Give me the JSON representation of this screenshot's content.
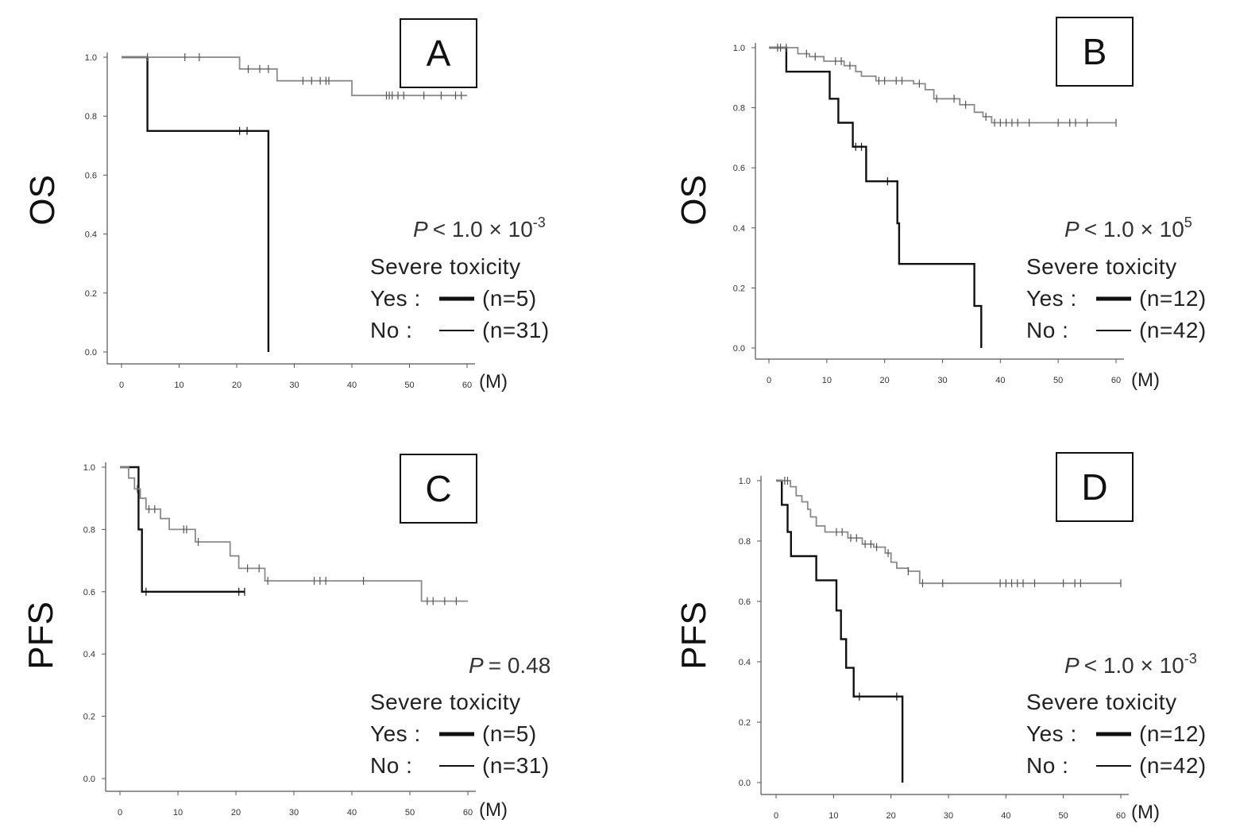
{
  "chart_data": [
    {
      "type": "line",
      "panel": "A",
      "ylabel": "OS",
      "xlabel": "(M)",
      "xlim": [
        0,
        60
      ],
      "ylim": [
        0,
        1
      ],
      "xticks": [
        "0",
        "10",
        "20",
        "30",
        "40",
        "50",
        "60"
      ],
      "yticks": [
        "0.0",
        "0.2",
        "0.4",
        "0.6",
        "0.8",
        "1.0"
      ],
      "p_value": {
        "prefix": "P",
        "text": "< 1.0 × 10",
        "sup": "-3"
      },
      "legend_title": "Severe toxicity",
      "legend": [
        {
          "label": "Yes :",
          "n": "(n=5)",
          "weight": "thick"
        },
        {
          "label": "No  :",
          "n": "(n=31)",
          "weight": "thin"
        }
      ],
      "series": [
        {
          "name": "Yes",
          "weight": "thick",
          "steps": [
            [
              0,
              1.0
            ],
            [
              4.5,
              0.75
            ],
            [
              25.5,
              0.0
            ]
          ],
          "end": 25.5,
          "censors": [
            20.5,
            21.8
          ]
        },
        {
          "name": "No",
          "weight": "thin",
          "steps": [
            [
              0,
              1.0
            ],
            [
              20.5,
              0.96
            ],
            [
              27,
              0.92
            ],
            [
              40,
              0.87
            ]
          ],
          "end": 60,
          "censors": [
            4.5,
            11,
            13.5,
            22,
            24,
            25.5,
            31.5,
            33,
            34.5,
            35.5,
            36,
            46,
            46.5,
            47,
            48,
            49,
            52.5,
            55.5,
            58,
            59
          ]
        }
      ]
    },
    {
      "type": "line",
      "panel": "B",
      "ylabel": "OS",
      "xlabel": "(M)",
      "xlim": [
        0,
        60
      ],
      "ylim": [
        0,
        1
      ],
      "xticks": [
        "0",
        "10",
        "20",
        "30",
        "40",
        "50",
        "60"
      ],
      "yticks": [
        "0.0",
        "0.2",
        "0.4",
        "0.6",
        "0.8",
        "1.0"
      ],
      "p_value": {
        "prefix": "P",
        "text": "< 1.0 × 10",
        "sup": "5"
      },
      "legend_title": "Severe toxicity",
      "legend": [
        {
          "label": "Yes :",
          "n": "(n=12)",
          "weight": "thick"
        },
        {
          "label": "No  :",
          "n": "(n=42)",
          "weight": "thin"
        }
      ],
      "series": [
        {
          "name": "Yes",
          "weight": "thick",
          "steps": [
            [
              0,
              1.0
            ],
            [
              3,
              0.92
            ],
            [
              10.5,
              0.83
            ],
            [
              12,
              0.75
            ],
            [
              14.5,
              0.67
            ],
            [
              16.8,
              0.555
            ],
            [
              22.2,
              0.415
            ],
            [
              22.5,
              0.28
            ],
            [
              35.5,
              0.14
            ],
            [
              36.7,
              0.0
            ]
          ],
          "end": 36.7,
          "censors": [
            15,
            16,
            20.5
          ]
        },
        {
          "name": "No",
          "weight": "thin",
          "steps": [
            [
              0,
              1.0
            ],
            [
              5,
              0.98
            ],
            [
              7,
              0.97
            ],
            [
              9.5,
              0.955
            ],
            [
              13,
              0.94
            ],
            [
              15,
              0.92
            ],
            [
              16,
              0.905
            ],
            [
              18.5,
              0.89
            ],
            [
              25,
              0.88
            ],
            [
              27,
              0.86
            ],
            [
              28.5,
              0.83
            ],
            [
              33,
              0.81
            ],
            [
              35.5,
              0.785
            ],
            [
              37,
              0.77
            ],
            [
              38.5,
              0.75
            ]
          ],
          "end": 60,
          "censors": [
            1.5,
            2,
            3,
            6.5,
            8,
            11.5,
            12.5,
            14,
            19,
            20,
            22,
            23,
            26,
            29,
            32,
            34,
            37.5,
            39,
            40,
            41,
            42,
            43,
            45,
            50,
            52,
            53,
            55,
            60
          ]
        }
      ]
    },
    {
      "type": "line",
      "panel": "C",
      "ylabel": "PFS",
      "xlabel": "(M)",
      "xlim": [
        0,
        60
      ],
      "ylim": [
        0,
        1
      ],
      "xticks": [
        "0",
        "10",
        "20",
        "30",
        "40",
        "50",
        "60"
      ],
      "yticks": [
        "0.0",
        "0.2",
        "0.4",
        "0.6",
        "0.8",
        "1.0"
      ],
      "p_value": {
        "prefix": "P",
        "text": "= 0.48",
        "sup": ""
      },
      "legend_title": "Severe toxicity",
      "legend": [
        {
          "label": "Yes :",
          "n": "(n=5)",
          "weight": "thick"
        },
        {
          "label": "No  :",
          "n": "(n=31)",
          "weight": "thin"
        }
      ],
      "series": [
        {
          "name": "Yes",
          "weight": "thick",
          "steps": [
            [
              0,
              1.0
            ],
            [
              3.2,
              0.8
            ],
            [
              3.8,
              0.6
            ]
          ],
          "end": 21.5,
          "censors": [
            4.5,
            20.5,
            21.5
          ]
        },
        {
          "name": "No",
          "weight": "thin",
          "steps": [
            [
              0,
              1.0
            ],
            [
              1.5,
              0.965
            ],
            [
              2.5,
              0.93
            ],
            [
              3.5,
              0.9
            ],
            [
              4.5,
              0.865
            ],
            [
              7,
              0.835
            ],
            [
              8.5,
              0.8
            ],
            [
              13,
              0.76
            ],
            [
              19,
              0.715
            ],
            [
              20.5,
              0.675
            ],
            [
              25,
              0.635
            ],
            [
              52,
              0.57
            ]
          ],
          "end": 60,
          "censors": [
            3,
            5,
            6,
            11,
            11.5,
            13.5,
            22,
            24,
            25.5,
            33.5,
            34.5,
            35.5,
            42,
            53,
            54,
            56,
            58
          ]
        }
      ]
    },
    {
      "type": "line",
      "panel": "D",
      "ylabel": "PFS",
      "xlabel": "(M)",
      "xlim": [
        0,
        60
      ],
      "ylim": [
        0,
        1
      ],
      "xticks": [
        "0",
        "10",
        "20",
        "30",
        "40",
        "50",
        "60"
      ],
      "yticks": [
        "0.0",
        "0.2",
        "0.4",
        "0.6",
        "0.8",
        "1.0"
      ],
      "p_value": {
        "prefix": "P",
        "text": "< 1.0 × 10",
        "sup": "-3"
      },
      "legend_title": "Severe toxicity",
      "legend": [
        {
          "label": "Yes :",
          "n": "(n=12)",
          "weight": "thick"
        },
        {
          "label": "No  :",
          "n": "(n=42)",
          "weight": "thin"
        }
      ],
      "series": [
        {
          "name": "Yes",
          "weight": "thick",
          "steps": [
            [
              0,
              1.0
            ],
            [
              1,
              0.92
            ],
            [
              2,
              0.83
            ],
            [
              2.6,
              0.75
            ],
            [
              7,
              0.67
            ],
            [
              10.5,
              0.57
            ],
            [
              11.3,
              0.475
            ],
            [
              12.2,
              0.38
            ],
            [
              13.5,
              0.285
            ],
            [
              22,
              0.0
            ]
          ],
          "end": 22,
          "censors": [
            14.5,
            21
          ]
        },
        {
          "name": "No",
          "weight": "thin",
          "steps": [
            [
              0,
              1.0
            ],
            [
              2.5,
              0.98
            ],
            [
              3.5,
              0.95
            ],
            [
              4.5,
              0.93
            ],
            [
              5.5,
              0.905
            ],
            [
              6,
              0.88
            ],
            [
              7,
              0.85
            ],
            [
              8.5,
              0.83
            ],
            [
              12.5,
              0.81
            ],
            [
              15,
              0.79
            ],
            [
              17,
              0.78
            ],
            [
              19,
              0.76
            ],
            [
              20,
              0.73
            ],
            [
              21,
              0.71
            ],
            [
              23,
              0.7
            ],
            [
              25,
              0.66
            ]
          ],
          "end": 60,
          "censors": [
            1.5,
            2,
            10.5,
            11.5,
            13,
            14,
            15.5,
            16.5,
            17.5,
            19.5,
            23,
            25.5,
            29,
            39,
            40,
            41,
            42,
            43,
            45,
            50,
            52,
            53,
            60
          ]
        }
      ]
    }
  ]
}
